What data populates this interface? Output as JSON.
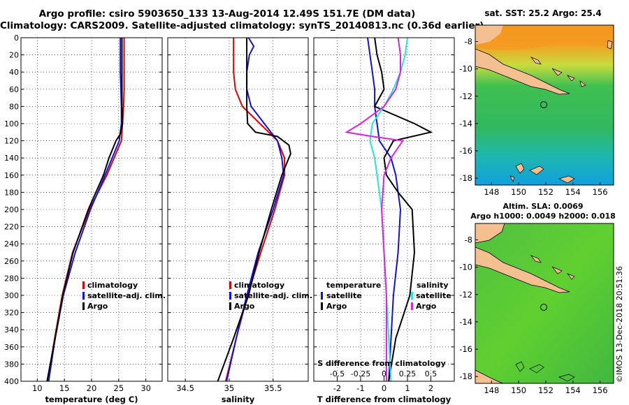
{
  "titles": {
    "line1": "Argo profile: csiro 5903650_133 13-Aug-2014 12.49S 151.7E (DM data)",
    "line2": "Climatology: CARS2009. Satellite-adjusted climatology: synTS_20140813.nc (0.36d earlier)",
    "sst": "sat. SST: 25.2 Argo: 25.4",
    "sla1": "Altim. SLA: 0.0069",
    "sla2": "Argo h1000: 0.0049 h2000: 0.018",
    "stamp": "©IMOS 13-Dec-2018 20:51:36"
  },
  "colors": {
    "climatology": "#e00000",
    "satellite": "#1010e0",
    "argo": "#000000",
    "sat_salinity": "#22e5e5",
    "argo_salinity": "#e020e0",
    "land": "#f5c090"
  },
  "chart_data": [
    {
      "type": "line",
      "name": "temperature",
      "xlabel": "temperature (deg C)",
      "ylabel": "",
      "xlim": [
        7,
        33
      ],
      "ylim": [
        400,
        0
      ],
      "ydir": "down",
      "xticks": [
        10,
        15,
        20,
        25,
        30
      ],
      "yticks": [
        0,
        20,
        40,
        60,
        80,
        100,
        120,
        140,
        160,
        180,
        200,
        220,
        240,
        260,
        280,
        300,
        320,
        340,
        360,
        380,
        400
      ],
      "legend": [
        "climatology",
        "satellite-adj. clim.",
        "Argo"
      ],
      "series": [
        {
          "name": "climatology",
          "depth": [
            0,
            20,
            40,
            60,
            80,
            100,
            120,
            160,
            200,
            250,
            300,
            350,
            400
          ],
          "values": [
            26.0,
            26.0,
            26.0,
            26.0,
            25.9,
            25.7,
            25.5,
            22.8,
            19.6,
            16.5,
            14.6,
            13.2,
            11.9
          ]
        },
        {
          "name": "satellite-adj. clim.",
          "depth": [
            0,
            20,
            40,
            60,
            80,
            100,
            120,
            160,
            200,
            250,
            300,
            350,
            400
          ],
          "values": [
            25.3,
            25.3,
            25.3,
            25.4,
            25.5,
            25.5,
            25.1,
            22.5,
            19.8,
            17.0,
            14.8,
            13.3,
            12.1
          ]
        },
        {
          "name": "Argo",
          "depth": [
            0,
            20,
            40,
            60,
            80,
            100,
            112,
            120,
            140,
            160,
            200,
            250,
            300,
            350,
            400
          ],
          "values": [
            25.6,
            25.6,
            25.6,
            25.6,
            25.6,
            25.7,
            25.3,
            24.5,
            23.2,
            22.2,
            19.4,
            16.6,
            14.7,
            13.3,
            11.8
          ]
        }
      ]
    },
    {
      "type": "line",
      "name": "salinity",
      "xlabel": "salinity",
      "xlim": [
        34.3,
        35.9
      ],
      "ylim": [
        400,
        0
      ],
      "ydir": "down",
      "xticks": [
        34.5,
        35,
        35.5
      ],
      "legend": [
        "climatology",
        "satellite-adj. clim.",
        "Argo"
      ],
      "series": [
        {
          "name": "climatology",
          "depth": [
            0,
            20,
            40,
            60,
            80,
            100,
            120,
            140,
            160,
            200,
            250,
            300,
            350,
            400
          ],
          "values": [
            35.05,
            35.05,
            35.05,
            35.07,
            35.15,
            35.35,
            35.55,
            35.63,
            35.63,
            35.52,
            35.36,
            35.21,
            35.08,
            34.96
          ]
        },
        {
          "name": "satellite-adj. clim.",
          "depth": [
            0,
            10,
            20,
            40,
            60,
            80,
            100,
            120,
            140,
            160,
            200,
            250,
            300,
            350,
            400
          ],
          "values": [
            35.22,
            35.28,
            35.23,
            35.2,
            35.2,
            35.25,
            35.4,
            35.55,
            35.6,
            35.62,
            35.5,
            35.33,
            35.2,
            35.08,
            34.97
          ]
        },
        {
          "name": "Argo",
          "depth": [
            0,
            20,
            40,
            60,
            80,
            100,
            110,
            115,
            125,
            135,
            150,
            160,
            200,
            250,
            300,
            350,
            400
          ],
          "values": [
            35.2,
            35.2,
            35.2,
            35.2,
            35.2,
            35.21,
            35.3,
            35.55,
            35.68,
            35.7,
            35.64,
            35.6,
            35.48,
            35.34,
            35.22,
            35.05,
            34.87
          ]
        }
      ]
    },
    {
      "type": "line",
      "name": "differences",
      "xlabel": "T difference from climatology",
      "xlabel_top": "S difference from climatology",
      "xlim": [
        -3,
        3
      ],
      "ylim": [
        400,
        0
      ],
      "ydir": "down",
      "xticks": [
        -2,
        -1,
        0,
        1,
        2
      ],
      "s_ticks": [
        {
          "label": "-0.5",
          "x": -2
        },
        {
          "label": "-0.25",
          "x": -1
        },
        {
          "label": "0",
          "x": 0
        },
        {
          "label": "0.25",
          "x": 1
        },
        {
          "label": "0.5",
          "x": 2
        }
      ],
      "legend_temperature_title": "temperature",
      "legend_salinity_title": "salinity",
      "legend_temperature": [
        "satellite",
        "Argo"
      ],
      "legend_salinity": [
        "satellite",
        "Argo"
      ],
      "series": [
        {
          "name": "T satellite",
          "depth": [
            0,
            20,
            40,
            60,
            80,
            100,
            120,
            140,
            160,
            200,
            250,
            300,
            350,
            400
          ],
          "values": [
            -0.7,
            -0.6,
            -0.5,
            -0.4,
            -0.4,
            -0.3,
            -0.2,
            0.3,
            0.5,
            0.7,
            0.6,
            0.4,
            0.3,
            0.2
          ]
        },
        {
          "name": "T Argo",
          "depth": [
            0,
            20,
            40,
            60,
            70,
            80,
            100,
            110,
            120,
            140,
            160,
            180,
            200,
            250,
            300,
            350,
            400
          ],
          "values": [
            -0.4,
            -0.3,
            -0.1,
            0.0,
            -0.2,
            -0.4,
            1.3,
            2.0,
            0.4,
            0.0,
            0.1,
            0.6,
            1.2,
            1.3,
            1.1,
            0.5,
            0.2
          ]
        },
        {
          "name": "S satellite",
          "depth": [
            0,
            20,
            40,
            60,
            80,
            100,
            120,
            140,
            160,
            200,
            250,
            300,
            350,
            400
          ],
          "values": [
            1.0,
            0.9,
            0.7,
            0.4,
            0.0,
            -0.5,
            -0.6,
            -0.4,
            -0.3,
            -0.1,
            0.0,
            0.1,
            0.2,
            0.3
          ]
        },
        {
          "name": "S Argo",
          "depth": [
            0,
            20,
            40,
            60,
            80,
            100,
            110,
            115,
            120,
            140,
            160,
            200,
            250,
            300,
            350,
            400
          ],
          "values": [
            0.6,
            0.7,
            0.7,
            0.5,
            0.0,
            -1.0,
            -1.6,
            -0.5,
            0.8,
            0.3,
            0.0,
            -0.1,
            0.0,
            0.1,
            0.1,
            0.1
          ]
        }
      ]
    },
    {
      "type": "heatmap",
      "name": "sst-map",
      "xticks": [
        148,
        150,
        152,
        154,
        156
      ],
      "yticks": [
        -8,
        -10,
        -12,
        -14,
        -16,
        -18
      ],
      "xlim": [
        146.8,
        157
      ],
      "ylim": [
        -18.5,
        -6.8
      ]
    },
    {
      "type": "heatmap",
      "name": "sla-map",
      "xticks": [
        148,
        150,
        152,
        154,
        156
      ],
      "yticks": [
        -8,
        -10,
        -12,
        -14,
        -16,
        -18
      ],
      "xlim": [
        146.8,
        157
      ],
      "ylim": [
        -18.5,
        -6.8
      ]
    }
  ]
}
